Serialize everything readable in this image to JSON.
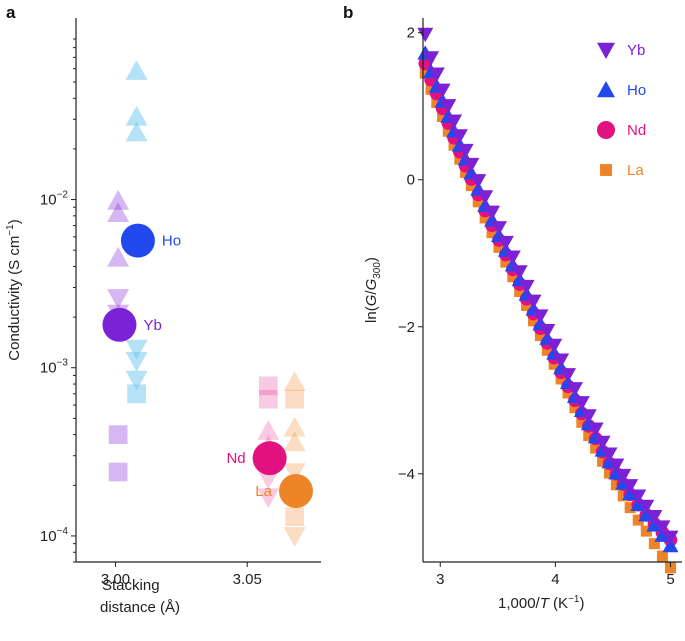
{
  "colors": {
    "Yb": "#7B22D6",
    "Ho": "#2249EE",
    "Nd": "#E3117F",
    "La": "#EE8428"
  },
  "chart_data": [
    {
      "panel": "a",
      "type": "scatter",
      "xlabel_line1": "Stacking",
      "xlabel_line2": "distance (Å)",
      "ylabel": "Conductivity (S cm",
      "ylabel_sup": "−1",
      "ylabel_end": ")",
      "yscale": "log",
      "xlim": [
        2.985,
        3.078
      ],
      "ylim": [
        7e-05,
        0.12
      ],
      "xticks": [
        {
          "value": 3.0,
          "label": "3.00"
        },
        {
          "value": 3.05,
          "label": "3.05"
        }
      ],
      "yticks": [
        {
          "value": 0.01,
          "base": "10",
          "exp": "−2"
        },
        {
          "value": 0.001,
          "base": "10",
          "exp": "−3"
        },
        {
          "value": 0.0001,
          "base": "10",
          "exp": "−4"
        }
      ],
      "background_points": [
        {
          "element": "Ho",
          "marker": "triangle-up",
          "x": 3.008,
          "y": 0.058
        },
        {
          "element": "Ho",
          "marker": "triangle-up",
          "x": 3.008,
          "y": 0.031
        },
        {
          "element": "Ho",
          "marker": "triangle-up",
          "x": 3.008,
          "y": 0.025
        },
        {
          "element": "Ho",
          "marker": "triangle-down",
          "x": 3.008,
          "y": 0.0013
        },
        {
          "element": "Ho",
          "marker": "triangle-down",
          "x": 3.008,
          "y": 0.0011
        },
        {
          "element": "Ho",
          "marker": "triangle-down",
          "x": 3.008,
          "y": 0.00085
        },
        {
          "element": "Ho",
          "marker": "square",
          "x": 3.008,
          "y": 0.0007
        },
        {
          "element": "Yb",
          "marker": "triangle-up",
          "x": 3.001,
          "y": 0.0098
        },
        {
          "element": "Yb",
          "marker": "triangle-up",
          "x": 3.001,
          "y": 0.0083
        },
        {
          "element": "Yb",
          "marker": "triangle-up",
          "x": 3.001,
          "y": 0.0045
        },
        {
          "element": "Yb",
          "marker": "triangle-down",
          "x": 3.001,
          "y": 0.0026
        },
        {
          "element": "Yb",
          "marker": "triangle-down",
          "x": 3.001,
          "y": 0.0021
        },
        {
          "element": "Yb",
          "marker": "square",
          "x": 3.001,
          "y": 0.0004
        },
        {
          "element": "Yb",
          "marker": "square",
          "x": 3.001,
          "y": 0.00024
        },
        {
          "element": "Nd",
          "marker": "square",
          "x": 3.058,
          "y": 0.00078
        },
        {
          "element": "Nd",
          "marker": "square",
          "x": 3.058,
          "y": 0.00065
        },
        {
          "element": "Nd",
          "marker": "triangle-up",
          "x": 3.058,
          "y": 0.00042
        },
        {
          "element": "Nd",
          "marker": "triangle-up",
          "x": 3.058,
          "y": 0.00034
        },
        {
          "element": "Nd",
          "marker": "triangle-down",
          "x": 3.058,
          "y": 0.00022
        },
        {
          "element": "Nd",
          "marker": "triangle-down",
          "x": 3.058,
          "y": 0.00017
        },
        {
          "element": "La",
          "marker": "triangle-up",
          "x": 3.068,
          "y": 0.00082
        },
        {
          "element": "La",
          "marker": "square",
          "x": 3.068,
          "y": 0.00065
        },
        {
          "element": "La",
          "marker": "triangle-up",
          "x": 3.068,
          "y": 0.00044
        },
        {
          "element": "La",
          "marker": "triangle-up",
          "x": 3.068,
          "y": 0.00036
        },
        {
          "element": "La",
          "marker": "triangle-down",
          "x": 3.068,
          "y": 0.00024
        },
        {
          "element": "La",
          "marker": "square",
          "x": 3.068,
          "y": 0.00013
        },
        {
          "element": "La",
          "marker": "triangle-down",
          "x": 3.068,
          "y": 0.0001
        }
      ],
      "highlight_points": [
        {
          "element": "Ho",
          "x": 3.0085,
          "y": 0.0057,
          "label": "Ho",
          "label_side": "right"
        },
        {
          "element": "Yb",
          "x": 3.0015,
          "y": 0.0018,
          "label": "Yb",
          "label_side": "right"
        },
        {
          "element": "Nd",
          "x": 3.0585,
          "y": 0.00029,
          "label": "Nd",
          "label_side": "left"
        },
        {
          "element": "La",
          "x": 3.0685,
          "y": 0.000185,
          "label": "La",
          "label_side": "left"
        }
      ]
    },
    {
      "panel": "b",
      "type": "scatter",
      "xlabel": "1,000/",
      "xlabel_var": "T",
      "xlabel_unit": " (K",
      "xlabel_sup": "−1",
      "xlabel_end": ")",
      "ylabel_pre": "ln(",
      "ylabel_var": "G",
      "ylabel_slash": "/",
      "ylabel_var2": "G",
      "ylabel_sub": "300",
      "ylabel_end": ")",
      "xlim": [
        2.85,
        5.1
      ],
      "ylim": [
        -5.2,
        2.2
      ],
      "xticks": [
        {
          "value": 3,
          "label": "3"
        },
        {
          "value": 4,
          "label": "4"
        },
        {
          "value": 5,
          "label": "5"
        }
      ],
      "yticks": [
        {
          "value": 2,
          "label": "2"
        },
        {
          "value": 0,
          "label": "0"
        },
        {
          "value": -2,
          "label": "−2"
        },
        {
          "value": -4,
          "label": "−4"
        }
      ],
      "legend": [
        {
          "element": "Yb",
          "marker": "triangle-down",
          "label": "Yb"
        },
        {
          "element": "Ho",
          "marker": "triangle-up",
          "label": "Ho"
        },
        {
          "element": "Nd",
          "marker": "circle",
          "label": "Nd"
        },
        {
          "element": "La",
          "marker": "square",
          "label": "La"
        }
      ],
      "x_values": [
        2.87,
        2.92,
        2.97,
        3.02,
        3.07,
        3.12,
        3.17,
        3.22,
        3.27,
        3.33,
        3.39,
        3.45,
        3.51,
        3.57,
        3.63,
        3.69,
        3.75,
        3.81,
        3.87,
        3.93,
        3.99,
        4.05,
        4.11,
        4.17,
        4.23,
        4.29,
        4.35,
        4.41,
        4.47,
        4.53,
        4.59,
        4.65,
        4.72,
        4.79,
        4.86,
        4.93,
        5.0
      ],
      "series": [
        {
          "element": "La",
          "marker": "square",
          "values": [
            1.45,
            1.23,
            1.05,
            0.86,
            0.66,
            0.47,
            0.28,
            0.1,
            -0.08,
            -0.3,
            -0.52,
            -0.72,
            -0.92,
            -1.12,
            -1.32,
            -1.52,
            -1.71,
            -1.92,
            -2.12,
            -2.32,
            -2.51,
            -2.71,
            -2.9,
            -3.1,
            -3.3,
            -3.48,
            -3.65,
            -3.83,
            -3.99,
            -4.15,
            -4.3,
            -4.46,
            -4.63,
            -4.78,
            -4.95,
            -5.12,
            -5.28
          ]
        },
        {
          "element": "Nd",
          "marker": "circle",
          "values": [
            1.58,
            1.36,
            1.17,
            0.97,
            0.77,
            0.57,
            0.38,
            0.19,
            0.01,
            -0.2,
            -0.42,
            -0.62,
            -0.82,
            -1.02,
            -1.22,
            -1.42,
            -1.62,
            -1.82,
            -2.02,
            -2.22,
            -2.42,
            -2.62,
            -2.81,
            -3.0,
            -3.18,
            -3.35,
            -3.52,
            -3.7,
            -3.86,
            -4.0,
            -4.14,
            -4.28,
            -4.42,
            -4.56,
            -4.68,
            -4.8,
            -4.9
          ]
        },
        {
          "element": "Ho",
          "marker": "triangle-up",
          "values": [
            1.72,
            1.47,
            1.27,
            1.07,
            0.86,
            0.66,
            0.47,
            0.28,
            0.09,
            -0.13,
            -0.35,
            -0.55,
            -0.76,
            -0.96,
            -1.16,
            -1.36,
            -1.56,
            -1.76,
            -1.96,
            -2.16,
            -2.36,
            -2.56,
            -2.76,
            -2.95,
            -3.14,
            -3.32,
            -3.5,
            -3.68,
            -3.84,
            -3.99,
            -4.13,
            -4.27,
            -4.42,
            -4.56,
            -4.7,
            -4.84,
            -4.98
          ]
        },
        {
          "element": "Yb",
          "marker": "triangle-down",
          "values": [
            1.98,
            1.66,
            1.44,
            1.22,
            1.01,
            0.8,
            0.6,
            0.4,
            0.21,
            -0.01,
            -0.23,
            -0.44,
            -0.65,
            -0.85,
            -1.05,
            -1.25,
            -1.45,
            -1.65,
            -1.85,
            -2.05,
            -2.25,
            -2.45,
            -2.65,
            -2.84,
            -3.03,
            -3.21,
            -3.39,
            -3.57,
            -3.73,
            -3.88,
            -4.02,
            -4.16,
            -4.3,
            -4.44,
            -4.58,
            -4.72,
            -4.86
          ]
        }
      ]
    }
  ]
}
